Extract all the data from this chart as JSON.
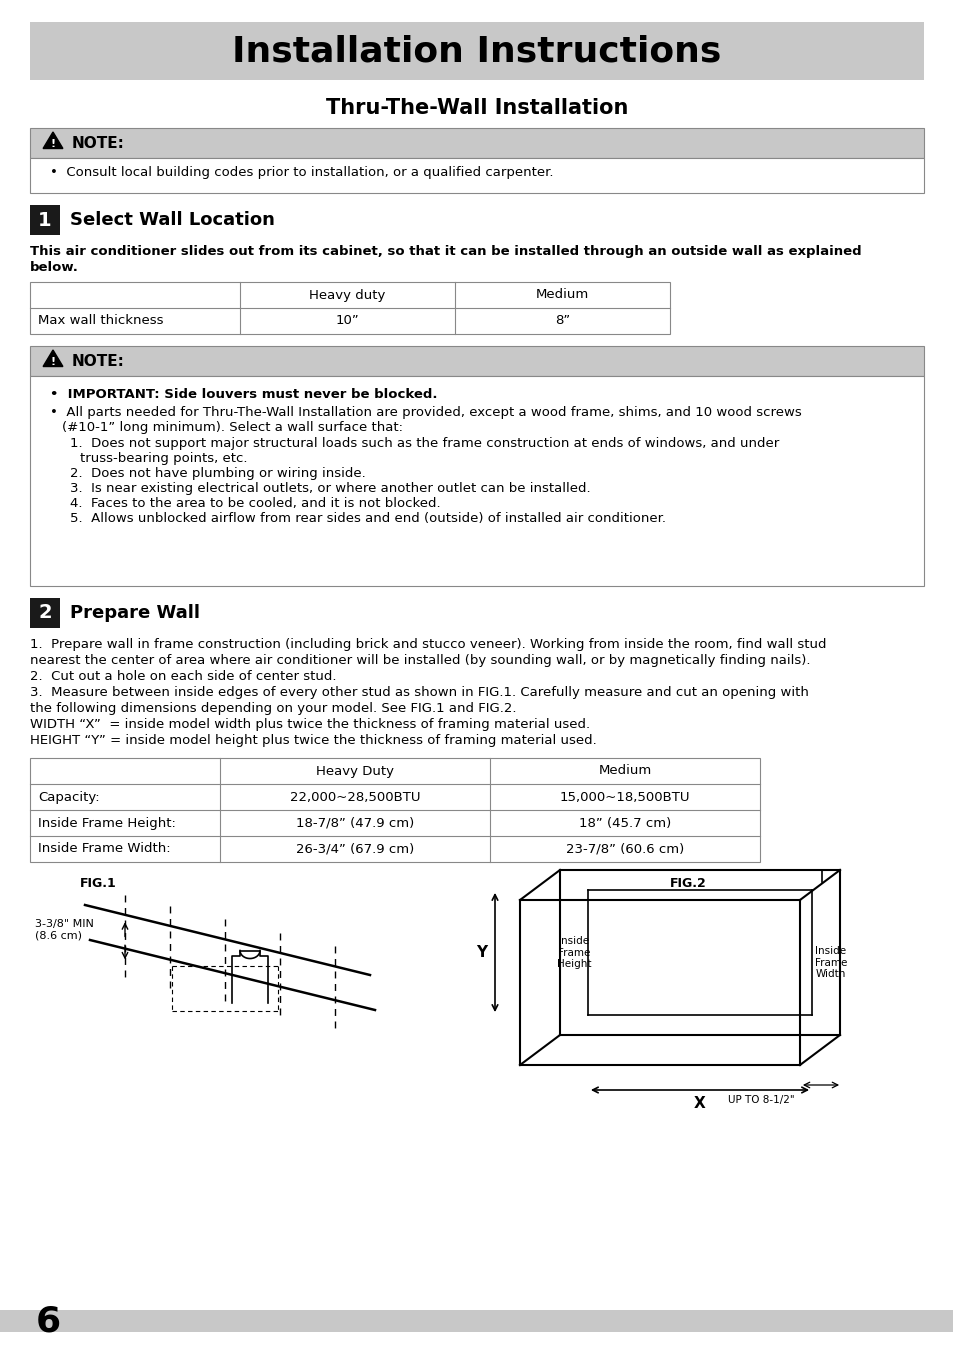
{
  "title": "Installation Instructions",
  "subtitle": "Thru-The-Wall Installation",
  "note1_text": "Consult local building codes prior to installation, or a qualified carpenter.",
  "section1_title": "Select Wall Location",
  "section1_intro": "This air conditioner slides out from its cabinet, so that it can be installed through an outside wall as explained\nbelow.",
  "table1_headers": [
    "",
    "Heavy duty",
    "Medium"
  ],
  "table1_rows": [
    [
      "Max wall thickness",
      "10”",
      "8”"
    ]
  ],
  "section2_title": "Prepare Wall",
  "section2_text": "1.  Prepare wall in frame construction (including brick and stucco veneer). Working from inside the room, find wall stud\nnearest the center of area where air conditioner will be installed (by sounding wall, or by magnetically finding nails).\n2.  Cut out a hole on each side of center stud.\n3.  Measure between inside edges of every other stud as shown in FIG.1. Carefully measure and cut an opening with\nthe following dimensions depending on your model. See FIG.1 and FIG.2.\nWIDTH “X”  = inside model width plus twice the thickness of framing material used.\nHEIGHT “Y” = inside model height plus twice the thickness of framing material used.",
  "table2_headers": [
    "",
    "Heavy Duty",
    "Medium"
  ],
  "table2_rows": [
    [
      "Capacity:",
      "22,000~28,500BTU",
      "15,000~18,500BTU"
    ],
    [
      "Inside Frame Height:",
      "18-7/8” (47.9 cm)",
      "18” (45.7 cm)"
    ],
    [
      "Inside Frame Width:",
      "26-3/4” (67.9 cm)",
      "23-7/8” (60.6 cm)"
    ]
  ],
  "note2_bullet1": "IMPORTANT: Side louvers must never be blocked.",
  "note2_bullet2_line1": "All parts needed for Thru-The-Wall Installation are provided, except a wood frame, shims, and 10 wood screws",
  "note2_bullet2_line2": "(#10-1” long minimum). Select a wall surface that:",
  "note2_numbered": [
    "1.  Does not support major structural loads such as the frame construction at ends of windows, and under",
    "truss-bearing points, etc.",
    "2.  Does not have plumbing or wiring inside.",
    "3.  Is near existing electrical outlets, or where another outlet can be installed.",
    "4.  Faces to the area to be cooled, and it is not blocked.",
    "5.  Allows unblocked airflow from rear sides and end (outside) of installed air conditioner."
  ],
  "fig1_label": "FIG.1",
  "fig2_label": "FIG.2",
  "fig2_y_label": "Y",
  "fig2_x_label": "X",
  "fig2_inside_frame_height": "Inside\nFrame\nHeight",
  "fig2_inside_frame_width": "Inside\nFrame\nWidth",
  "fig2_up_to": "UP TO 8-1/2\"",
  "fig1_arrow_label": "3-3/8\" MIN\n(8.6 cm)",
  "page_number": "6",
  "bg_color": "#ffffff",
  "header_bg": "#c8c8c8",
  "note_header_bg": "#c8c8c8",
  "border_color": "#888888",
  "table_border": "#888888",
  "section_box_bg": "#1a1a1a"
}
